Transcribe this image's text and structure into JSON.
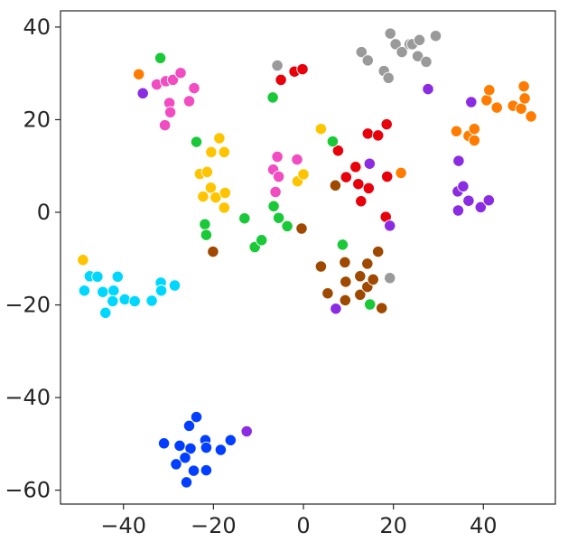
{
  "chart_data": {
    "type": "scatter",
    "title": "",
    "xlabel": "",
    "ylabel": "",
    "xlim": [
      -54,
      56
    ],
    "ylim": [
      -63,
      43.5
    ],
    "xticks": [
      -40,
      -20,
      0,
      20,
      40
    ],
    "yticks": [
      40,
      20,
      0,
      -20,
      -40,
      -60
    ],
    "xtick_labels": [
      "−40",
      "−20",
      "0",
      "20",
      "40"
    ],
    "ytick_labels": [
      "40",
      "20",
      "0",
      "−20",
      "−40",
      "−60"
    ],
    "grid": false,
    "legend": "none",
    "series": [
      {
        "color": "#9a9a9a",
        "points": [
          [
            12.9,
            34.6
          ],
          [
            14.3,
            32.8
          ],
          [
            19.3,
            38.6
          ],
          [
            20.5,
            36.3
          ],
          [
            21.9,
            34.6
          ],
          [
            23.6,
            36.3
          ],
          [
            24.2,
            36.3
          ],
          [
            25.4,
            33.7
          ],
          [
            25.8,
            37.2
          ],
          [
            27.3,
            32.5
          ],
          [
            29.4,
            38.1
          ],
          [
            17.9,
            30.5
          ],
          [
            18.9,
            29.0
          ],
          [
            19.2,
            -14.2
          ],
          [
            -5.8,
            31.7
          ]
        ]
      },
      {
        "color": "#ff7c00",
        "points": [
          [
            -36.6,
            29.8
          ],
          [
            4,
            18
          ],
          [
            21.7,
            8.5
          ],
          [
            34,
            17.5
          ],
          [
            36.7,
            16.5
          ],
          [
            38,
            18
          ],
          [
            38,
            15.5
          ],
          [
            40.7,
            24.2
          ],
          [
            41.3,
            26.4
          ],
          [
            43,
            22.6
          ],
          [
            46.6,
            23
          ],
          [
            48.4,
            22.4
          ],
          [
            49,
            27.2
          ],
          [
            49.2,
            24.6
          ],
          [
            50.6,
            20.7
          ]
        ]
      },
      {
        "color": "#e8000b",
        "points": [
          [
            -5,
            28.6
          ],
          [
            -2,
            30.4
          ],
          [
            -0.2,
            30.9
          ],
          [
            7.7,
            13.3
          ],
          [
            9.5,
            7.6
          ],
          [
            11.6,
            9.8
          ],
          [
            12.2,
            6.1
          ],
          [
            12.8,
            2.4
          ],
          [
            14.3,
            17
          ],
          [
            14.5,
            5.2
          ],
          [
            16.6,
            16.6
          ],
          [
            18.5,
            19
          ],
          [
            18.6,
            7.7
          ],
          [
            18.3,
            -1
          ]
        ]
      },
      {
        "color": "#f14cc1",
        "points": [
          [
            -32.6,
            27.6
          ],
          [
            -30.6,
            28.3
          ],
          [
            -29,
            28.6
          ],
          [
            -27.3,
            30.1
          ],
          [
            -24.3,
            26.8
          ],
          [
            -25.4,
            24
          ],
          [
            -29.8,
            23.6
          ],
          [
            -29.6,
            21.6
          ],
          [
            -30.8,
            18.8
          ],
          [
            -6.7,
            9.2
          ],
          [
            -5.8,
            12
          ],
          [
            -5.5,
            7.7
          ],
          [
            -6.2,
            4.4
          ],
          [
            -1.4,
            11.4
          ]
        ]
      },
      {
        "color": "#ffc400",
        "points": [
          [
            -18.7,
            16
          ],
          [
            -20.5,
            13
          ],
          [
            -17.6,
            13
          ],
          [
            -23,
            8.3
          ],
          [
            -21.4,
            8.7
          ],
          [
            -20.6,
            5.3
          ],
          [
            -22.3,
            3.4
          ],
          [
            -19.5,
            3.2
          ],
          [
            -17.4,
            4.2
          ],
          [
            -17.6,
            1
          ],
          [
            -1.3,
            6.7
          ],
          [
            0,
            8.2
          ],
          [
            3.9,
            18
          ],
          [
            -49,
            -10.3
          ]
        ]
      },
      {
        "color": "#1ac938",
        "points": [
          [
            -31.8,
            33.3
          ],
          [
            -6.8,
            24.8
          ],
          [
            -23.8,
            15.2
          ],
          [
            6.5,
            15.3
          ],
          [
            -21.9,
            -2.6
          ],
          [
            -21.6,
            -4.9
          ],
          [
            -13.1,
            -1.3
          ],
          [
            -10.8,
            -7.5
          ],
          [
            -9.3,
            -6
          ],
          [
            -6.6,
            1.3
          ],
          [
            -5.5,
            -1.2
          ],
          [
            -3.6,
            -3
          ],
          [
            8.7,
            -7
          ],
          [
            14.8,
            -19.9
          ]
        ]
      },
      {
        "color": "#8b2be2",
        "points": [
          [
            -35.7,
            25.7
          ],
          [
            27.7,
            26.6
          ],
          [
            37.3,
            23.8
          ],
          [
            14.7,
            10.5
          ],
          [
            19.2,
            -2.9
          ],
          [
            34.5,
            11.1
          ],
          [
            34.3,
            4.5
          ],
          [
            35.5,
            5.6
          ],
          [
            36.7,
            2.5
          ],
          [
            34.4,
            0.4
          ],
          [
            39.4,
            1.1
          ],
          [
            41.2,
            2.6
          ],
          [
            7.2,
            -20.8
          ],
          [
            -12.6,
            -47.3
          ]
        ]
      },
      {
        "color": "#9f4800",
        "points": [
          [
            -20.1,
            -8.5
          ],
          [
            -0.4,
            -3.5
          ],
          [
            7.1,
            5.8
          ],
          [
            3.9,
            -11.7
          ],
          [
            5.4,
            -17.5
          ],
          [
            9.2,
            -10.8
          ],
          [
            9.4,
            -15
          ],
          [
            9.3,
            -19
          ],
          [
            12.6,
            -13.8
          ],
          [
            12.6,
            -17.8
          ],
          [
            14.2,
            -11.1
          ],
          [
            14.2,
            -16.1
          ],
          [
            15.5,
            -14.5
          ],
          [
            16.6,
            -8.5
          ],
          [
            17.4,
            -20.7
          ]
        ]
      },
      {
        "color": "#00d7ff",
        "points": [
          [
            -48.7,
            -16.9
          ],
          [
            -47.5,
            -13.8
          ],
          [
            -45.8,
            -13.9
          ],
          [
            -44.6,
            -17.2
          ],
          [
            -42.2,
            -16.9
          ],
          [
            -41.3,
            -13.9
          ],
          [
            -42.4,
            -19.2
          ],
          [
            -39.7,
            -18.8
          ],
          [
            -37.5,
            -19.2
          ],
          [
            -33.7,
            -19.1
          ],
          [
            -31.7,
            -15.2
          ],
          [
            -31.6,
            -16.9
          ],
          [
            -28.6,
            -15.8
          ],
          [
            -44,
            -21.7
          ]
        ]
      },
      {
        "color": "#023eff",
        "points": [
          [
            -23.8,
            -44.2
          ],
          [
            -25.4,
            -46.1
          ],
          [
            -21.8,
            -49.2
          ],
          [
            -16.2,
            -49.2
          ],
          [
            -31,
            -49.9
          ],
          [
            -27.5,
            -50.4
          ],
          [
            -25.1,
            -51
          ],
          [
            -21.6,
            -50.8
          ],
          [
            -18.4,
            -51.3
          ],
          [
            -26.3,
            -53
          ],
          [
            -28.3,
            -54.4
          ],
          [
            -24.4,
            -55.8
          ],
          [
            -21.6,
            -55.7
          ],
          [
            -26,
            -58.3
          ]
        ]
      }
    ]
  }
}
